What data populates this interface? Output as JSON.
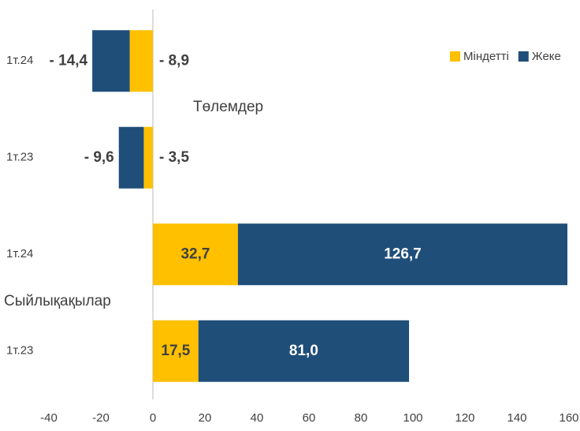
{
  "chart_data": {
    "type": "stacked-barh",
    "categories": [
      "1т.24",
      "1т.23",
      "1т.24",
      "1т.23"
    ],
    "series": [
      {
        "name": "Міндетті",
        "color": "#FFC000",
        "values": [
          -8.9,
          -3.5,
          32.7,
          17.5
        ],
        "value_labels": [
          "- 8,9",
          "- 3,5",
          "32,7",
          "17,5"
        ]
      },
      {
        "name": "Жеке",
        "color": "#1F4E79",
        "values": [
          -14.4,
          -9.6,
          126.7,
          81.0
        ],
        "value_labels": [
          "- 14,4",
          "- 9,6",
          "126,7",
          "81,0"
        ]
      }
    ],
    "annotations": [
      "Төлемдер",
      "Сыйлықақылар"
    ],
    "xlim": [
      -40,
      160
    ],
    "xticks": [
      -40,
      -20,
      0,
      20,
      40,
      60,
      80,
      100,
      120,
      140,
      160
    ],
    "grid": false,
    "legend": "top-right"
  }
}
